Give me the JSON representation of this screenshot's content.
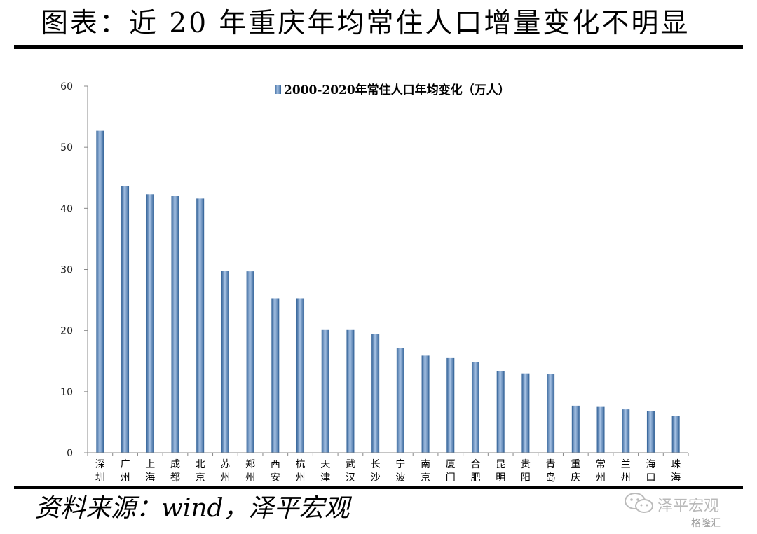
{
  "title": "图表：近 20 年重庆年均常住人口增量变化不明显",
  "source": "资料来源：wind，泽平宏观",
  "watermark": {
    "name": "泽平宏观",
    "sub": "格隆汇"
  },
  "colors": {
    "bar": "#4f81bd",
    "bar_light": "#a9c4e6",
    "bar_dark": "#2f5f95",
    "axis": "#888888"
  },
  "chart_data": {
    "type": "bar",
    "legend_position": "top",
    "grid": false,
    "ylim": [
      0,
      60
    ],
    "yticks": [
      0,
      10,
      20,
      30,
      40,
      50,
      60
    ],
    "series": [
      {
        "name": "2000-2020年常住人口年均变化（万人）",
        "values": [
          52.7,
          43.6,
          42.3,
          42.1,
          41.6,
          29.8,
          29.7,
          25.3,
          25.3,
          20.1,
          20.1,
          19.5,
          17.2,
          15.9,
          15.5,
          14.8,
          13.4,
          13.0,
          12.9,
          7.7,
          7.5,
          7.1,
          6.8,
          6.0
        ]
      }
    ],
    "categories": [
      "深圳",
      "广州",
      "上海",
      "成都",
      "北京",
      "苏州",
      "郑州",
      "西安",
      "杭州",
      "天津",
      "武汉",
      "长沙",
      "宁波",
      "南京",
      "厦门",
      "合肥",
      "昆明",
      "贵阳",
      "青岛",
      "重庆",
      "常州",
      "兰州",
      "海口",
      "珠海"
    ]
  }
}
